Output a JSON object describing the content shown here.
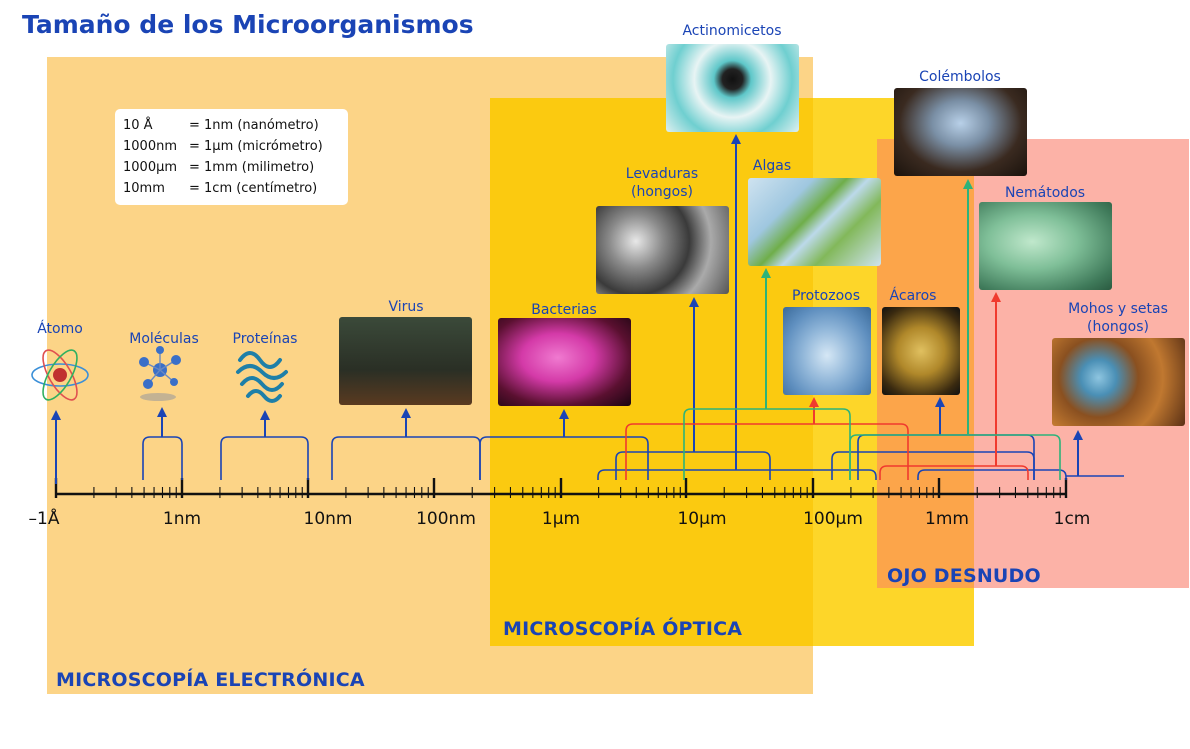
{
  "title": "Tamaño de los Microorganismos",
  "legend": [
    {
      "lhs": "10 Å",
      "rhs": "= 1nm (nanómetro)"
    },
    {
      "lhs": "1000nm",
      "rhs": "= 1μm (micrómetro)"
    },
    {
      "lhs": "1000μm",
      "rhs": "= 1mm (milimetro)"
    },
    {
      "lhs": "10mm",
      "rhs": "= 1cm (centímetro)"
    }
  ],
  "zones": {
    "electronica": "MICROSCOPÍA ELECTRÓNICA",
    "optica": "MICROSCOPÍA ÓPTICA",
    "ojo": "OJO DESNUDO"
  },
  "axis_labels": [
    "–1Å",
    "1nm",
    "10nm",
    "100nm",
    "1μm",
    "10μm",
    "100μm",
    "1mm",
    "1cm"
  ],
  "organisms": {
    "atomo": "Átomo",
    "moleculas": "Moléculas",
    "proteinas": "Proteínas",
    "virus": "Virus",
    "bacterias": "Bacterias",
    "levaduras": "Levaduras\n(hongos)",
    "actinomicetos": "Actinomicetos",
    "algas": "Algas",
    "protozoos": "Protozoos",
    "acaros": "Ácaros",
    "colembolos": "Colémbolos",
    "nematodos": "Nemátodos",
    "mohos": "Mohos y setas\n(hongos)"
  },
  "colors": {
    "blue": "#1a44b5",
    "red": "#f03a2e",
    "green": "#2db37a",
    "zone_electronica": "#fcd487",
    "zone_optica": "#fdd125",
    "zone_ojo": "#fcb2a7",
    "overlap": "#fcad56"
  }
}
